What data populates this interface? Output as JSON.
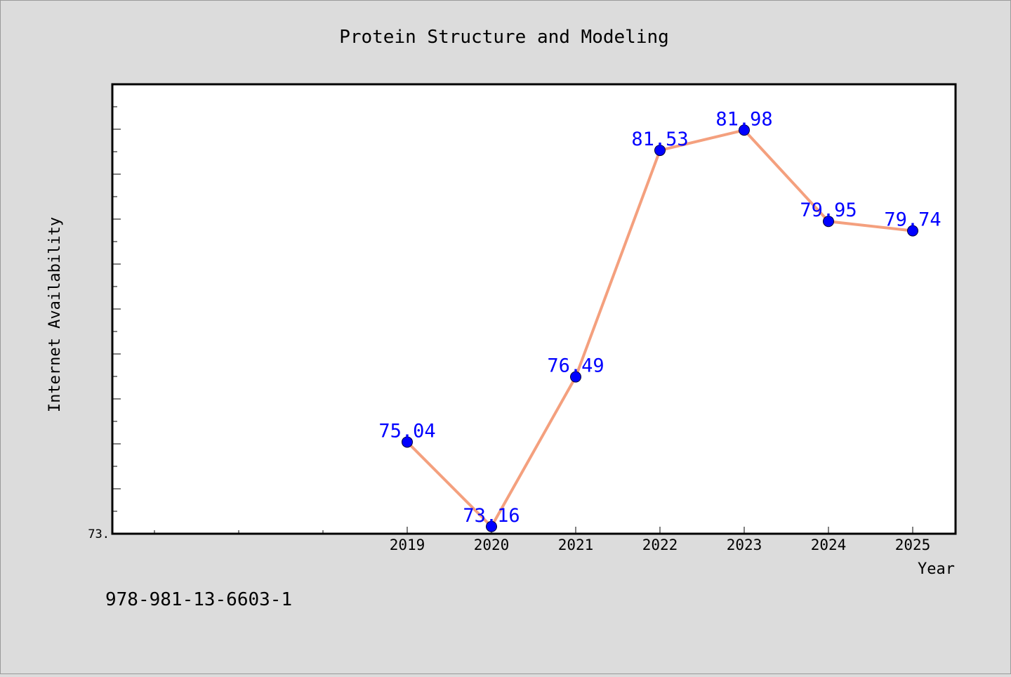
{
  "chart_data": {
    "type": "line",
    "title": "Protein Structure and Modeling",
    "xlabel": "Year",
    "ylabel": "Internet Availability",
    "x": [
      "2019",
      "2020",
      "2021",
      "2022",
      "2023",
      "2024",
      "2025"
    ],
    "series": [
      {
        "values": [
          75.04,
          73.16,
          76.49,
          81.53,
          81.98,
          79.95,
          79.74
        ]
      }
    ],
    "data_labels": [
      "75.04",
      "73.16",
      "76.49",
      "81.53",
      "81.98",
      "79.95",
      "79.74"
    ],
    "y_tick_label": "73.",
    "ylim": [
      73.0,
      83.0
    ],
    "grid": false,
    "colors": {
      "line": "#f4a07e",
      "marker": "#0000ff",
      "data_label": "#0000ff",
      "background": "#dcdcdc",
      "plot_bg": "#ffffff"
    }
  },
  "footer": {
    "isbn": "978-981-13-6603-1"
  }
}
